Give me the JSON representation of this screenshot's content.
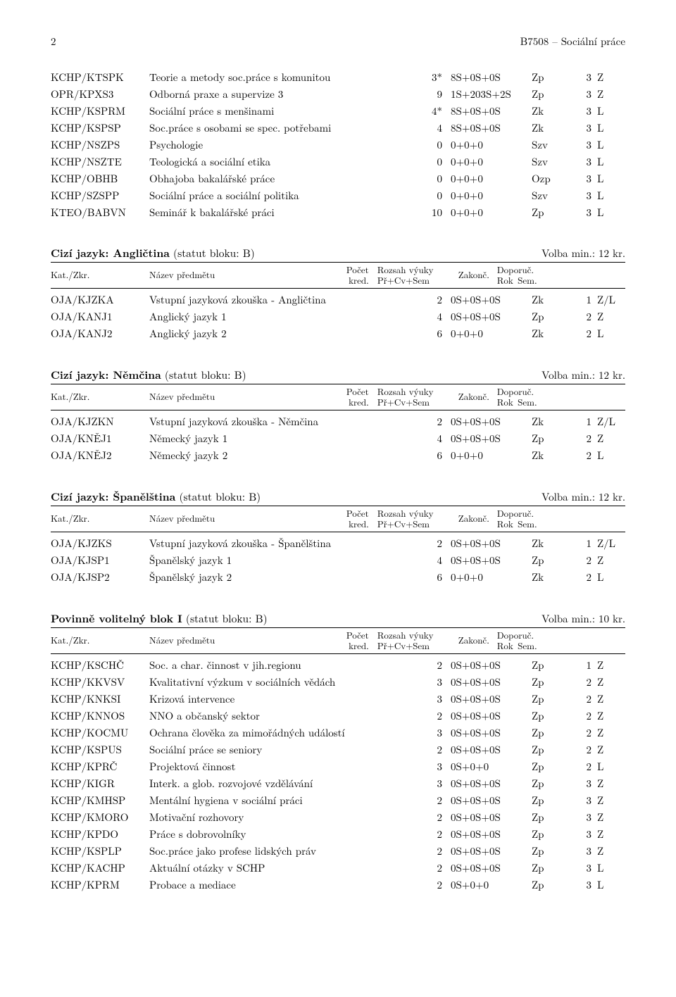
{
  "header": {
    "page_no": "2",
    "running": "B7508 – Sociální práce"
  },
  "column_headers": {
    "kat": "Kat./Zkr.",
    "nazev": "Název předmětu",
    "pocet": "Počet",
    "kred": "kred.",
    "rozsah_top": "Rozsah výuky",
    "rozsah_bot": "Př+Cv+Sem",
    "zakonc": "Zakonč.",
    "doporuc": "Doporuč.",
    "rok": "Rok",
    "sem": "Sem."
  },
  "top_table": [
    {
      "code": "KCHP/KTSPK",
      "name": "Teorie a metody soc.práce s komunitou",
      "kred": "3*",
      "rozsah": "8S+0S+0S",
      "zakon": "Zp",
      "rok": "3",
      "sem": "Z"
    },
    {
      "code": "OPR/KPXS3",
      "name": "Odborná praxe a supervize 3",
      "kred": "9",
      "rozsah": "1S+203S+2S",
      "zakon": "Zp",
      "rok": "3",
      "sem": "Z"
    },
    {
      "code": "KCHP/KSPRM",
      "name": "Sociální práce s menšinami",
      "kred": "4*",
      "rozsah": "8S+0S+0S",
      "zakon": "Zk",
      "rok": "3",
      "sem": "L"
    },
    {
      "code": "KCHP/KSPSP",
      "name": "Soc.práce s osobami se spec. potřebami",
      "kred": "4",
      "rozsah": "8S+0S+0S",
      "zakon": "Zk",
      "rok": "3",
      "sem": "L"
    },
    {
      "code": "KCHP/NSZPS",
      "name": "Psychologie",
      "kred": "0",
      "rozsah": "0+0+0",
      "zakon": "Szv",
      "rok": "3",
      "sem": "L"
    },
    {
      "code": "KCHP/NSZTE",
      "name": "Teologická a sociální etika",
      "kred": "0",
      "rozsah": "0+0+0",
      "zakon": "Szv",
      "rok": "3",
      "sem": "L"
    },
    {
      "code": "KCHP/OBHB",
      "name": "Obhajoba bakalářské práce",
      "kred": "0",
      "rozsah": "0+0+0",
      "zakon": "Ozp",
      "rok": "3",
      "sem": "L"
    },
    {
      "code": "KCHP/SZSPP",
      "name": "Sociální práce a sociální politika",
      "kred": "0",
      "rozsah": "0+0+0",
      "zakon": "Szv",
      "rok": "3",
      "sem": "L"
    },
    {
      "code": "KTEO/BABVN",
      "name": "Seminář k bakalářské práci",
      "kred": "10",
      "rozsah": "0+0+0",
      "zakon": "Zp",
      "rok": "3",
      "sem": "L"
    }
  ],
  "blocks": [
    {
      "title_bold": "Cizí jazyk: Angličtina",
      "title_rest": " (statut bloku: B)",
      "volba": "Volba min.: 12 kr.",
      "rows": [
        {
          "code": "OJA/KJZKA",
          "name": "Vstupní jazyková zkouška - Angličtina",
          "kred": "2",
          "rozsah": "0S+0S+0S",
          "zakon": "Zk",
          "rok": "1",
          "sem": "Z/L"
        },
        {
          "code": "OJA/KANJ1",
          "name": "Anglický jazyk 1",
          "kred": "4",
          "rozsah": "0S+0S+0S",
          "zakon": "Zp",
          "rok": "2",
          "sem": "Z"
        },
        {
          "code": "OJA/KANJ2",
          "name": "Anglický jazyk 2",
          "kred": "6",
          "rozsah": "0+0+0",
          "zakon": "Zk",
          "rok": "2",
          "sem": "L"
        }
      ]
    },
    {
      "title_bold": "Cizí jazyk: Němčina",
      "title_rest": " (statut bloku: B)",
      "volba": "Volba min.: 12 kr.",
      "rows": [
        {
          "code": "OJA/KJZKN",
          "name": "Vstupní jazyková zkouška - Němčina",
          "kred": "2",
          "rozsah": "0S+0S+0S",
          "zakon": "Zk",
          "rok": "1",
          "sem": "Z/L"
        },
        {
          "code": "OJA/KNĚJ1",
          "name": "Německý jazyk 1",
          "kred": "4",
          "rozsah": "0S+0S+0S",
          "zakon": "Zp",
          "rok": "2",
          "sem": "Z"
        },
        {
          "code": "OJA/KNĚJ2",
          "name": "Německý jazyk 2",
          "kred": "6",
          "rozsah": "0+0+0",
          "zakon": "Zk",
          "rok": "2",
          "sem": "L"
        }
      ]
    },
    {
      "title_bold": "Cizí jazyk: Španělština",
      "title_rest": " (statut bloku: B)",
      "volba": "Volba min.: 12 kr.",
      "rows": [
        {
          "code": "OJA/KJZKS",
          "name": "Vstupní jazyková zkouška - Španělština",
          "kred": "2",
          "rozsah": "0S+0S+0S",
          "zakon": "Zk",
          "rok": "1",
          "sem": "Z/L"
        },
        {
          "code": "OJA/KJSP1",
          "name": "Španělský jazyk 1",
          "kred": "4",
          "rozsah": "0S+0S+0S",
          "zakon": "Zp",
          "rok": "2",
          "sem": "Z"
        },
        {
          "code": "OJA/KJSP2",
          "name": "Španělský jazyk 2",
          "kred": "6",
          "rozsah": "0+0+0",
          "zakon": "Zk",
          "rok": "2",
          "sem": "L"
        }
      ]
    },
    {
      "title_bold": "Povinně volitelný blok I",
      "title_rest": " (statut bloku: B)",
      "volba": "Volba min.: 10 kr.",
      "rows": [
        {
          "code": "KCHP/KSCHČ",
          "name": "Soc. a char. činnost v jih.regionu",
          "kred": "2",
          "rozsah": "0S+0S+0S",
          "zakon": "Zp",
          "rok": "1",
          "sem": "Z"
        },
        {
          "code": "KCHP/KKVSV",
          "name": "Kvalitativní výzkum v sociálních vědách",
          "kred": "3",
          "rozsah": "0S+0S+0S",
          "zakon": "Zp",
          "rok": "2",
          "sem": "Z"
        },
        {
          "code": "KCHP/KNKSI",
          "name": "Krizová intervence",
          "kred": "3",
          "rozsah": "0S+0S+0S",
          "zakon": "Zp",
          "rok": "2",
          "sem": "Z"
        },
        {
          "code": "KCHP/KNNOS",
          "name": "NNO a občanský sektor",
          "kred": "2",
          "rozsah": "0S+0S+0S",
          "zakon": "Zp",
          "rok": "2",
          "sem": "Z"
        },
        {
          "code": "KCHP/KOCMU",
          "name": "Ochrana člověka za mimořádných událostí",
          "kred": "3",
          "rozsah": "0S+0S+0S",
          "zakon": "Zp",
          "rok": "2",
          "sem": "Z"
        },
        {
          "code": "KCHP/KSPUS",
          "name": "Sociální práce se seniory",
          "kred": "2",
          "rozsah": "0S+0S+0S",
          "zakon": "Zp",
          "rok": "2",
          "sem": "Z"
        },
        {
          "code": "KCHP/KPRČ",
          "name": "Projektová činnost",
          "kred": "3",
          "rozsah": "0S+0+0",
          "zakon": "Zp",
          "rok": "2",
          "sem": "L"
        },
        {
          "code": "KCHP/KIGR",
          "name": "Interk. a glob. rozvojové vzdělávání",
          "kred": "3",
          "rozsah": "0S+0S+0S",
          "zakon": "Zp",
          "rok": "3",
          "sem": "Z"
        },
        {
          "code": "KCHP/KMHSP",
          "name": "Mentální hygiena v sociální práci",
          "kred": "2",
          "rozsah": "0S+0S+0S",
          "zakon": "Zp",
          "rok": "3",
          "sem": "Z"
        },
        {
          "code": "KCHP/KMORO",
          "name": "Motivační rozhovory",
          "kred": "2",
          "rozsah": "0S+0S+0S",
          "zakon": "Zp",
          "rok": "3",
          "sem": "Z"
        },
        {
          "code": "KCHP/KPDO",
          "name": "Práce s dobrovolníky",
          "kred": "2",
          "rozsah": "0S+0S+0S",
          "zakon": "Zp",
          "rok": "3",
          "sem": "Z"
        },
        {
          "code": "KCHP/KSPLP",
          "name": "Soc.práce jako profese lidských práv",
          "kred": "2",
          "rozsah": "0S+0S+0S",
          "zakon": "Zp",
          "rok": "3",
          "sem": "Z"
        },
        {
          "code": "KCHP/KACHP",
          "name": "Aktuální otázky v SCHP",
          "kred": "2",
          "rozsah": "0S+0S+0S",
          "zakon": "Zp",
          "rok": "3",
          "sem": "L"
        },
        {
          "code": "KCHP/KPRM",
          "name": "Probace a mediace",
          "kred": "2",
          "rozsah": "0S+0+0",
          "zakon": "Zp",
          "rok": "3",
          "sem": "L"
        }
      ]
    }
  ]
}
